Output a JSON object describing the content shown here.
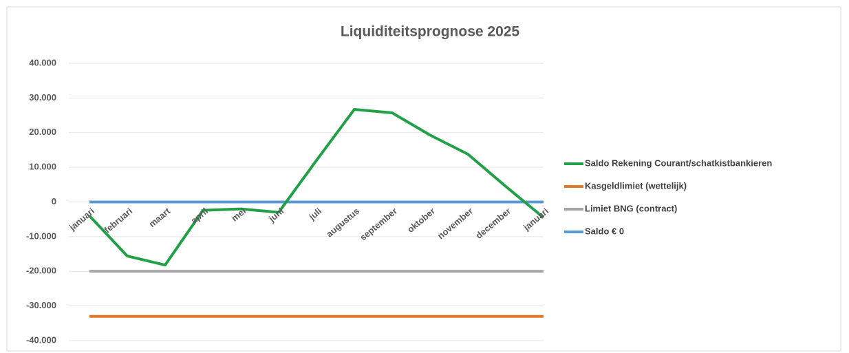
{
  "chart_data": {
    "type": "line",
    "title": "Liquiditeitsprognose 2025",
    "categories": [
      "januari",
      "februari",
      "maart",
      "april",
      "mei",
      "juni",
      "juli",
      "augustus",
      "september",
      "oktober",
      "november",
      "december",
      "januari"
    ],
    "series": [
      {
        "name": "Saldo Rekening Courant/schatkistbankieren",
        "color": "#21a048",
        "values": [
          -4000,
          -15600,
          -18200,
          -2400,
          -2000,
          -3000,
          12000,
          26700,
          25700,
          19300,
          13800,
          4500,
          -4500
        ]
      },
      {
        "name": "Kasgeldlimiet (wettelijk)",
        "color": "#e07b2a",
        "values": [
          -33000,
          -33000,
          -33000,
          -33000,
          -33000,
          -33000,
          -33000,
          -33000,
          -33000,
          -33000,
          -33000,
          -33000,
          -33000
        ]
      },
      {
        "name": "Limiet BNG (contract)",
        "color": "#a5a5a5",
        "values": [
          -20000,
          -20000,
          -20000,
          -20000,
          -20000,
          -20000,
          -20000,
          -20000,
          -20000,
          -20000,
          -20000,
          -20000,
          -20000
        ]
      },
      {
        "name": "Saldo € 0",
        "color": "#5b9bd5",
        "values": [
          0,
          0,
          0,
          0,
          0,
          0,
          0,
          0,
          0,
          0,
          0,
          0,
          0
        ]
      }
    ],
    "ylim": [
      -40000,
      40000
    ],
    "yticks": [
      {
        "value": -40000,
        "label": "-40.000"
      },
      {
        "value": -30000,
        "label": "-30.000"
      },
      {
        "value": -20000,
        "label": "-20.000"
      },
      {
        "value": -10000,
        "label": "-10.000"
      },
      0,
      {
        "value": 10000,
        "label": "10.000"
      },
      {
        "value": 20000,
        "label": "20.000"
      },
      {
        "value": 30000,
        "label": "30.000"
      },
      {
        "value": 40000,
        "label": "40.000"
      }
    ],
    "grid": true,
    "legend": "right"
  }
}
